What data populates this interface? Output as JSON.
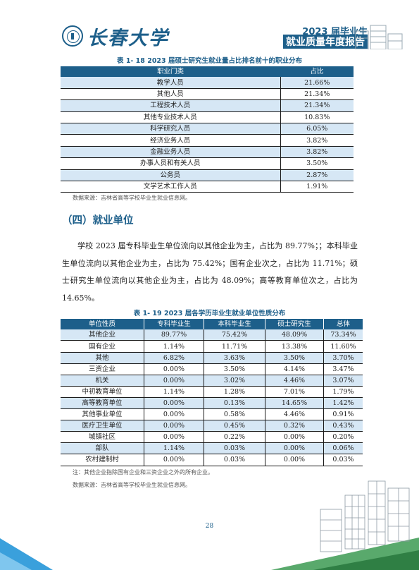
{
  "header": {
    "university_name": "长春大学",
    "report_line1": "2023 届毕业生",
    "report_line2": "就业质量年度报告"
  },
  "table1": {
    "caption": "表 1- 18    2023 届硕士研究生就业量占比排名前十的职业分布",
    "headers": [
      "职业门类",
      "占比"
    ],
    "rows": [
      [
        "教学人员",
        "21.66%"
      ],
      [
        "其他人员",
        "21.34%"
      ],
      [
        "工程技术人员",
        "21.34%"
      ],
      [
        "其他专业技术人员",
        "10.83%"
      ],
      [
        "科学研究人员",
        "6.05%"
      ],
      [
        "经济业务人员",
        "3.82%"
      ],
      [
        "金融业务人员",
        "3.82%"
      ],
      [
        "办事人员和有关人员",
        "3.50%"
      ],
      [
        "公务员",
        "2.87%"
      ],
      [
        "文学艺术工作人员",
        "1.91%"
      ]
    ],
    "source": "数据来源：吉林省高等学校毕业生就业信息网。"
  },
  "section": {
    "title": "（四）就业单位",
    "paragraph": "学校 2023 届专科毕业生单位流向以其他企业为主，占比为 89.77%；；本科毕业生单位流向以其他企业为主，占比为 75.42%；国有企业次之，占比为 11.71%；硕士研究生单位流向以其他企业为主，占比为 48.09%；高等教育单位次之，占比为 14.65%。"
  },
  "table2": {
    "caption": "表 1- 19    2023 届各学历毕业生就业单位性质分布",
    "headers": [
      "单位性质",
      "专科毕业生",
      "本科毕业生",
      "硕士研究生",
      "总体"
    ],
    "rows": [
      [
        "其他企业",
        "89.77%",
        "75.42%",
        "48.09%",
        "73.34%"
      ],
      [
        "国有企业",
        "1.14%",
        "11.71%",
        "13.38%",
        "11.60%"
      ],
      [
        "其他",
        "6.82%",
        "3.63%",
        "3.50%",
        "3.70%"
      ],
      [
        "三资企业",
        "0.00%",
        "3.50%",
        "4.14%",
        "3.47%"
      ],
      [
        "机关",
        "0.00%",
        "3.02%",
        "4.46%",
        "3.07%"
      ],
      [
        "中初教育单位",
        "1.14%",
        "1.28%",
        "7.01%",
        "1.79%"
      ],
      [
        "高等教育单位",
        "0.00%",
        "0.13%",
        "14.65%",
        "1.42%"
      ],
      [
        "其他事业单位",
        "0.00%",
        "0.58%",
        "4.46%",
        "0.91%"
      ],
      [
        "医疗卫生单位",
        "0.00%",
        "0.45%",
        "0.32%",
        "0.43%"
      ],
      [
        "城镇社区",
        "0.00%",
        "0.22%",
        "0.00%",
        "0.20%"
      ],
      [
        "部队",
        "1.14%",
        "0.03%",
        "0.00%",
        "0.06%"
      ],
      [
        "农村建制村",
        "0.00%",
        "0.03%",
        "0.00%",
        "0.03%"
      ]
    ],
    "note": "注：其他企业指除国有企业和三资企业之外的所有企业。",
    "source": "数据来源：吉林省高等学校毕业生就业信息网。"
  },
  "page_number": "28",
  "colors": {
    "accent": "#1d5f8a",
    "row_alt": "#d6e7f5",
    "corner": "#3aa0dc"
  }
}
